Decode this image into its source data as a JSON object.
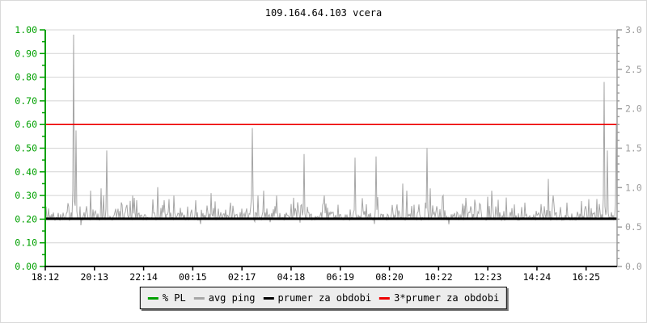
{
  "header": {
    "title": "109.164.64.103 vcera"
  },
  "legend": {
    "items": [
      {
        "label": "% PL",
        "color": "#00a000"
      },
      {
        "label": "avg ping",
        "color": "#a6a6a6"
      },
      {
        "label": "prumer za obdobi",
        "color": "#000000"
      },
      {
        "label": "3*prumer za obdobi",
        "color": "#ee0000"
      }
    ]
  },
  "chart_data": {
    "type": "line",
    "title": "109.164.64.103 vcera",
    "x_tick_labels": [
      "18:12",
      "20:13",
      "22:14",
      "00:15",
      "02:17",
      "04:18",
      "06:19",
      "08:20",
      "10:22",
      "12:23",
      "14:24",
      "16:25"
    ],
    "axes": {
      "left": {
        "min": 0,
        "max": 1,
        "major_step": 0.1,
        "minor_step": 0.05,
        "color": "#00a000",
        "tick_labels": [
          "0.00",
          "0.10",
          "0.20",
          "0.30",
          "0.40",
          "0.50",
          "0.60",
          "0.70",
          "0.80",
          "0.90",
          "1.00"
        ]
      },
      "right": {
        "min": 0,
        "max": 3,
        "major_step": 0.5,
        "minor_step": 0.1,
        "color": "#9e9e9e",
        "tick_labels": [
          "0.0",
          "0.5",
          "1.0",
          "1.5",
          "2.0",
          "2.5",
          "3.0"
        ]
      }
    },
    "grid": {
      "horizontal": true,
      "vertical": false,
      "color": "#d4d4d4"
    },
    "series": [
      {
        "name": "% PL",
        "color": "#00a000",
        "constant_value": 0,
        "note": "packet loss stays at 0 for the whole period (line hidden under x-axis)"
      },
      {
        "name": "avg ping",
        "color": "#a6a6a6",
        "baseline": 0.2,
        "noise_range": [
          0.175,
          0.29
        ],
        "spikes": [
          {
            "t": "19:21",
            "pos": 0.0495,
            "v": 0.98
          },
          {
            "t": "19:27",
            "pos": 0.0538,
            "v": 0.575
          },
          {
            "t": "20:03",
            "pos": 0.0792,
            "v": 0.32
          },
          {
            "t": "20:29",
            "pos": 0.0976,
            "v": 0.33
          },
          {
            "t": "20:35",
            "pos": 0.1018,
            "v": 0.3
          },
          {
            "t": "20:42",
            "pos": 0.1075,
            "v": 0.49
          },
          {
            "t": "21:46",
            "pos": 0.1528,
            "v": 0.3
          },
          {
            "t": "21:56",
            "pos": 0.1598,
            "v": 0.28
          },
          {
            "t": "22:47",
            "pos": 0.1966,
            "v": 0.335
          },
          {
            "t": "23:27",
            "pos": 0.2249,
            "v": 0.3
          },
          {
            "t": "00:20",
            "pos": 0.2631,
            "v": 0.28
          },
          {
            "t": "00:58",
            "pos": 0.29,
            "v": 0.31
          },
          {
            "t": "01:45",
            "pos": 0.3239,
            "v": 0.27
          },
          {
            "t": "02:39",
            "pos": 0.3621,
            "v": 0.585
          },
          {
            "t": "02:53",
            "pos": 0.372,
            "v": 0.3
          },
          {
            "t": "03:07",
            "pos": 0.3819,
            "v": 0.32
          },
          {
            "t": "03:38",
            "pos": 0.4045,
            "v": 0.3
          },
          {
            "t": "04:46",
            "pos": 0.4526,
            "v": 0.475
          },
          {
            "t": "05:35",
            "pos": 0.488,
            "v": 0.3
          },
          {
            "t": "06:50",
            "pos": 0.5417,
            "v": 0.46
          },
          {
            "t": "07:42",
            "pos": 0.5785,
            "v": 0.465
          },
          {
            "t": "08:47",
            "pos": 0.6252,
            "v": 0.35
          },
          {
            "t": "08:57",
            "pos": 0.6322,
            "v": 0.32
          },
          {
            "t": "09:47",
            "pos": 0.6676,
            "v": 0.5
          },
          {
            "t": "09:55",
            "pos": 0.6733,
            "v": 0.33
          },
          {
            "t": "10:26",
            "pos": 0.6959,
            "v": 0.3
          },
          {
            "t": "11:22",
            "pos": 0.7355,
            "v": 0.29
          },
          {
            "t": "12:25",
            "pos": 0.7808,
            "v": 0.32
          },
          {
            "t": "13:46",
            "pos": 0.8388,
            "v": 0.27
          },
          {
            "t": "14:44",
            "pos": 0.8798,
            "v": 0.37
          },
          {
            "t": "14:56",
            "pos": 0.8883,
            "v": 0.3
          },
          {
            "t": "17:00",
            "pos": 0.9774,
            "v": 0.78
          },
          {
            "t": "17:08",
            "pos": 0.983,
            "v": 0.49
          },
          {
            "t": "17:30",
            "pos": 0.9986,
            "v": 0.6
          }
        ]
      },
      {
        "name": "prumer za obdobi",
        "color": "#000000",
        "constant_value": 0.202
      },
      {
        "name": "3*prumer za obdobi",
        "color": "#ee0000",
        "constant_value": 0.6
      }
    ]
  }
}
